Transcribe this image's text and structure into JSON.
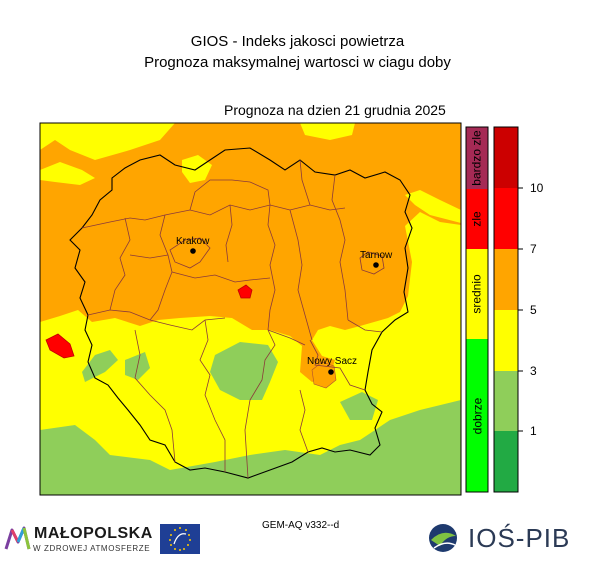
{
  "header": {
    "title": "GIOS - Indeks jakosci powietrza",
    "subtitle": "Prognoza maksymalnej wartosci w ciagu doby",
    "forecast_date": "Prognoza na dzien  21 grudnia 2025"
  },
  "cities": [
    {
      "name": "Krakow"
    },
    {
      "name": "Tarnow"
    },
    {
      "name": "Nowy Sacz"
    }
  ],
  "legend": {
    "categories": [
      {
        "label": "bardzo zle",
        "color": "#a52a55"
      },
      {
        "label": "zle",
        "color": "#ff0000"
      },
      {
        "label": "srednio",
        "color": "#ffff00"
      },
      {
        "label": "dobrze",
        "color": "#00ff00"
      }
    ],
    "scale_colors": [
      "#cc0000",
      "#ff0000",
      "#ffa500",
      "#ffff00",
      "#8fce5a",
      "#22aa44"
    ],
    "ticks": [
      "10",
      "7",
      "5",
      "3",
      "1"
    ]
  },
  "footer": {
    "model": "GEM-AQ v332--d",
    "sponsor_name": "MAŁOPOLSKA",
    "sponsor_tagline": "W ZDROWEJ ATMOSFERZE",
    "institute": "IOŚ-PIB"
  }
}
